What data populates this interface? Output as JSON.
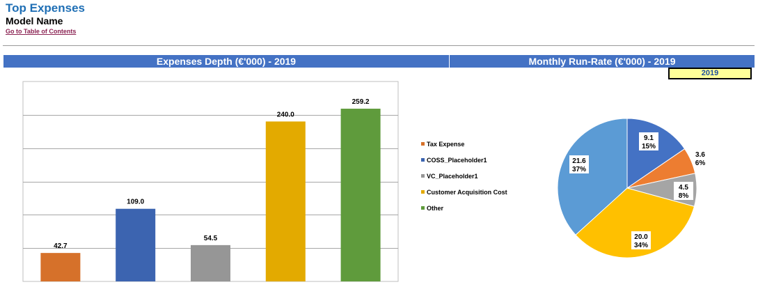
{
  "header": {
    "title": "Top Expenses",
    "model_name": "Model Name",
    "toc_link": "Go to Table of Contents"
  },
  "panels": {
    "left_title": "Expenses Depth (€'000) - 2019",
    "right_title": "Monthly Run-Rate (€'000) - 2019",
    "year_selector": "2019"
  },
  "chart_data": [
    {
      "type": "bar",
      "title": "Expenses Depth (€'000) - 2019",
      "categories": [
        "Tax Expense",
        "COSS_Placeholder1",
        "VC_Placeholder1",
        "Customer Acquisition Cost",
        "Other"
      ],
      "values": [
        42.7,
        109.0,
        54.5,
        240.0,
        259.2
      ],
      "value_labels": [
        "42.7",
        "109.0",
        "54.5",
        "240.0",
        "259.2"
      ],
      "colors": [
        "#d6712a",
        "#3c64b0",
        "#969696",
        "#e3aa00",
        "#5f9b3c"
      ],
      "ylim": [
        0,
        300
      ],
      "grid": true,
      "legend_position": "right"
    },
    {
      "type": "pie",
      "title": "Monthly Run-Rate (€'000) - 2019",
      "labels": [
        "COSS_Placeholder1",
        "Tax Expense",
        "VC_Placeholder1",
        "Customer Acquisition Cost",
        "Other"
      ],
      "values": [
        9.1,
        3.6,
        4.5,
        20.0,
        21.6
      ],
      "value_labels": [
        "9.1",
        "3.6",
        "4.5",
        "20.0",
        "21.6"
      ],
      "percent_labels": [
        "15%",
        "6%",
        "8%",
        "34%",
        "37%"
      ],
      "colors": [
        "#4472c4",
        "#ed7d31",
        "#a5a5a5",
        "#ffc000",
        "#5b9bd5"
      ]
    }
  ]
}
